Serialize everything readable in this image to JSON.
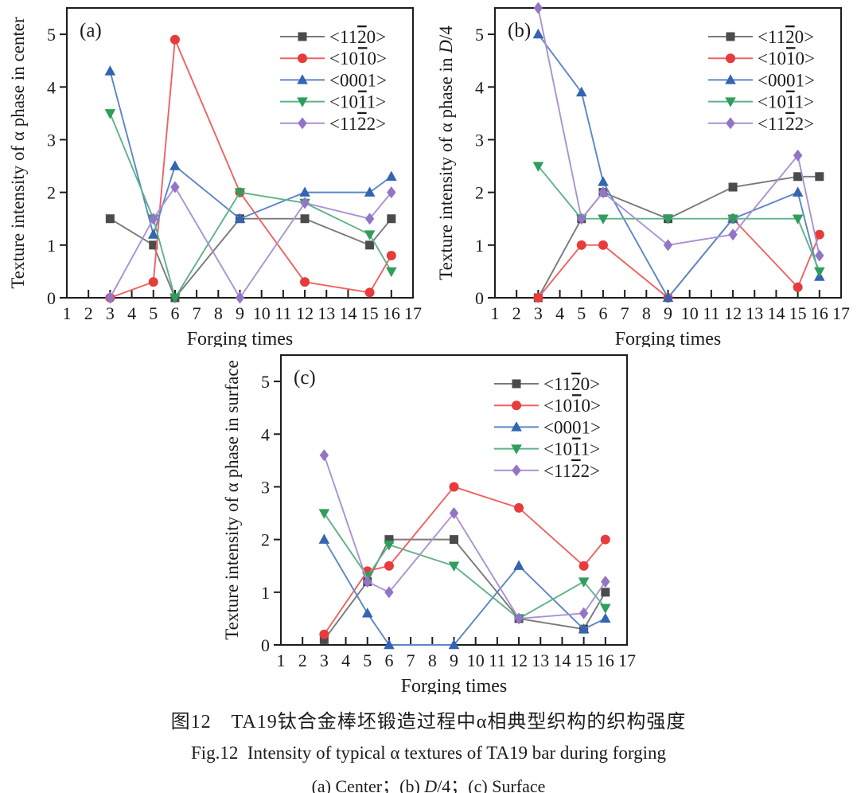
{
  "caption": {
    "cn": "图12　TA19钛合金棒坯锻造过程中α相典型织构的织构强度",
    "en": "Fig.12 Intensity of typical α textures of TA19 bar during forging",
    "sub_pre": "(a) Center；(b) ",
    "sub_d": "D",
    "sub_post": "/4；(c) Surface"
  },
  "colors": {
    "axis": "#1c1c1c",
    "text": "#1c1c1c",
    "background": "#ffffff"
  },
  "series_meta": [
    {
      "key": "11-20",
      "marker": "square",
      "line_color": "#7a7a7a",
      "marker_color": "#4b4b4b",
      "label": {
        "pre": "<11",
        "bar": "2",
        "post": "0>"
      }
    },
    {
      "key": "10-10",
      "marker": "circle",
      "line_color": "#ef6262",
      "marker_color": "#e73b3c",
      "label": {
        "pre": "<10",
        "bar": "1",
        "post": "0>"
      }
    },
    {
      "key": "0001",
      "marker": "triangle-up",
      "line_color": "#5b87c7",
      "marker_color": "#3464b2",
      "label": {
        "pre": "<0001>",
        "bar": "",
        "post": ""
      }
    },
    {
      "key": "10-11",
      "marker": "triangle-down",
      "line_color": "#5fb388",
      "marker_color": "#2f9e5c",
      "label": {
        "pre": "<10",
        "bar": "1",
        "post": "1>"
      }
    },
    {
      "key": "11-22",
      "marker": "diamond",
      "line_color": "#ab92d2",
      "marker_color": "#9374c6",
      "label": {
        "pre": "<11",
        "bar": "2",
        "post": "2>"
      }
    }
  ],
  "chart_data": [
    {
      "id": "a",
      "type": "line",
      "panel_label": "(a)",
      "xlabel": "Forging times",
      "ylabel_parts": [
        {
          "t": "Texture intensity of α phase in center"
        }
      ],
      "xlim": [
        1,
        17
      ],
      "ylim": [
        0,
        5.5
      ],
      "xticks": [
        1,
        2,
        3,
        4,
        5,
        6,
        7,
        8,
        9,
        10,
        11,
        12,
        13,
        14,
        15,
        16,
        17
      ],
      "yticks": [
        0,
        1,
        2,
        3,
        4,
        5
      ],
      "grid": false,
      "legend_position": "top-right",
      "x": [
        3,
        5,
        6,
        9,
        12,
        15,
        16
      ],
      "series": [
        {
          "name": "<112̅0>",
          "values": [
            1.5,
            1.0,
            0.0,
            1.5,
            1.5,
            1.0,
            1.5
          ]
        },
        {
          "name": "<101̅0>",
          "values": [
            0.0,
            0.3,
            4.9,
            2.0,
            0.3,
            0.1,
            0.8
          ]
        },
        {
          "name": "<0001>",
          "values": [
            4.3,
            1.2,
            2.5,
            1.5,
            2.0,
            2.0,
            2.3
          ]
        },
        {
          "name": "<101̅1>",
          "values": [
            3.5,
            1.5,
            0.0,
            2.0,
            1.8,
            1.2,
            0.5
          ]
        },
        {
          "name": "<112̅2>",
          "values": [
            0.0,
            1.5,
            2.1,
            0.0,
            1.8,
            1.5,
            2.0
          ]
        }
      ]
    },
    {
      "id": "b",
      "type": "line",
      "panel_label": "(b)",
      "xlabel": "Forging times",
      "ylabel_parts": [
        {
          "t": "Texture intensity of α phase in "
        },
        {
          "t": "D",
          "i": true
        },
        {
          "t": "/4"
        }
      ],
      "xlim": [
        1,
        17
      ],
      "ylim": [
        0,
        5.5
      ],
      "xticks": [
        1,
        2,
        3,
        4,
        5,
        6,
        7,
        8,
        9,
        10,
        11,
        12,
        13,
        14,
        15,
        16,
        17
      ],
      "yticks": [
        0,
        1,
        2,
        3,
        4,
        5
      ],
      "grid": false,
      "legend_position": "top-right",
      "x": [
        3,
        5,
        6,
        9,
        12,
        15,
        16
      ],
      "series": [
        {
          "name": "<112̅0>",
          "values": [
            0.0,
            1.5,
            2.0,
            1.5,
            2.1,
            2.3,
            2.3
          ]
        },
        {
          "name": "<101̅0>",
          "values": [
            0.0,
            1.0,
            1.0,
            0.0,
            1.5,
            0.2,
            1.2
          ]
        },
        {
          "name": "<0001>",
          "values": [
            5.0,
            3.9,
            2.2,
            0.0,
            1.5,
            2.0,
            0.4
          ]
        },
        {
          "name": "<101̅1>",
          "values": [
            2.5,
            1.5,
            1.5,
            1.5,
            1.5,
            1.5,
            0.5
          ]
        },
        {
          "name": "<112̅2>",
          "values": [
            5.5,
            1.5,
            2.0,
            1.0,
            1.2,
            2.7,
            0.8
          ]
        }
      ]
    },
    {
      "id": "c",
      "type": "line",
      "panel_label": "(c)",
      "xlabel": "Forging times",
      "ylabel_parts": [
        {
          "t": "Texture intensity of α phase in surface"
        }
      ],
      "xlim": [
        1,
        17
      ],
      "ylim": [
        0,
        5.5
      ],
      "xticks": [
        1,
        2,
        3,
        4,
        5,
        6,
        7,
        8,
        9,
        10,
        11,
        12,
        13,
        14,
        15,
        16,
        17
      ],
      "yticks": [
        0,
        1,
        2,
        3,
        4,
        5
      ],
      "grid": false,
      "legend_position": "top-right",
      "x": [
        3,
        5,
        6,
        9,
        12,
        15,
        16
      ],
      "series": [
        {
          "name": "<112̅0>",
          "values": [
            0.1,
            1.2,
            2.0,
            2.0,
            0.5,
            0.3,
            1.0
          ]
        },
        {
          "name": "<101̅0>",
          "values": [
            0.2,
            1.4,
            1.5,
            3.0,
            2.6,
            1.5,
            2.0
          ]
        },
        {
          "name": "<0001>",
          "values": [
            2.0,
            0.6,
            0.0,
            0.0,
            1.5,
            0.3,
            0.5
          ]
        },
        {
          "name": "<101̅1>",
          "values": [
            2.5,
            1.3,
            1.9,
            1.5,
            0.5,
            1.2,
            0.7
          ]
        },
        {
          "name": "<112̅2>",
          "values": [
            3.6,
            1.2,
            1.0,
            2.5,
            0.5,
            0.6,
            1.2
          ]
        }
      ]
    }
  ]
}
